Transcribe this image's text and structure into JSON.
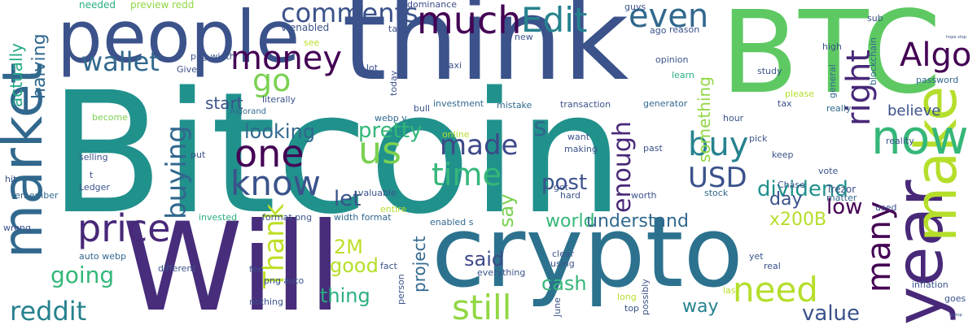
{
  "words": [
    {
      "text": "Bitcoin",
      "color": "#21918c"
    },
    {
      "text": "Will",
      "color": "#472d7b"
    },
    {
      "text": "crypto",
      "color": "#2c728e"
    },
    {
      "text": "think",
      "color": "#3b528b"
    },
    {
      "text": "BTC",
      "color": "#5ec962"
    },
    {
      "text": "people",
      "color": "#3b528b"
    },
    {
      "text": "year",
      "color": "#482878"
    },
    {
      "text": "market",
      "color": "#31688e"
    },
    {
      "text": "make",
      "color": "#b5de2b"
    },
    {
      "text": "now",
      "color": "#35b779"
    },
    {
      "text": "price",
      "color": "#482878"
    },
    {
      "text": "one",
      "color": "#440154"
    },
    {
      "text": "us",
      "color": "#7ad151"
    },
    {
      "text": "know",
      "color": "#3b528b"
    },
    {
      "text": "much",
      "color": "#440154"
    },
    {
      "text": "Edit",
      "color": "#26828e"
    },
    {
      "text": "even",
      "color": "#31688e"
    },
    {
      "text": "money",
      "color": "#440154"
    },
    {
      "text": "Algo",
      "color": "#440154"
    },
    {
      "text": "buy",
      "color": "#26828e"
    },
    {
      "text": "right",
      "color": "#482878"
    },
    {
      "text": "still",
      "color": "#90d743"
    },
    {
      "text": "need",
      "color": "#b5de2b"
    },
    {
      "text": "time",
      "color": "#35b779"
    },
    {
      "text": "USD",
      "color": "#3b528b"
    },
    {
      "text": "made",
      "color": "#3e4989"
    },
    {
      "text": "many",
      "color": "#440154"
    },
    {
      "text": "go",
      "color": "#7ad151"
    },
    {
      "text": "wallet",
      "color": "#31688e"
    },
    {
      "text": "comments",
      "color": "#3b528b"
    },
    {
      "text": "reddit",
      "color": "#26828e"
    },
    {
      "text": "buying",
      "color": "#31688e"
    },
    {
      "text": "Thank",
      "color": "#bddf26"
    },
    {
      "text": "going",
      "color": "#35b779"
    },
    {
      "text": "value",
      "color": "#3b528b"
    },
    {
      "text": "enough",
      "color": "#482878"
    },
    {
      "text": "dividend",
      "color": "#21918c"
    },
    {
      "text": "post",
      "color": "#3b528b"
    },
    {
      "text": "say",
      "color": "#7ad151"
    },
    {
      "text": "world",
      "color": "#35b779"
    },
    {
      "text": "understand",
      "color": "#31688e"
    },
    {
      "text": "let",
      "color": "#3b528b"
    },
    {
      "text": "pretty",
      "color": "#35b779"
    },
    {
      "text": "looking",
      "color": "#31688e"
    },
    {
      "text": "start",
      "color": "#3b528b"
    },
    {
      "text": "something",
      "color": "#90d743"
    },
    {
      "text": "halving",
      "color": "#31688e"
    },
    {
      "text": "actually",
      "color": "#22a884"
    },
    {
      "text": "s",
      "color": "#31688e"
    },
    {
      "text": "x200B",
      "color": "#b5de2b"
    },
    {
      "text": "2M",
      "color": "#bddf26"
    },
    {
      "text": "day",
      "color": "#3b528b"
    },
    {
      "text": "low",
      "color": "#440154"
    },
    {
      "text": "said",
      "color": "#3e4989"
    },
    {
      "text": "good",
      "color": "#b5de2b"
    },
    {
      "text": "cash",
      "color": "#35b779"
    },
    {
      "text": "thing",
      "color": "#2ab07f"
    },
    {
      "text": "way",
      "color": "#26828e"
    },
    {
      "text": "project",
      "color": "#31688e"
    },
    {
      "text": "believe",
      "color": "#3b528b"
    },
    {
      "text": "Trezor",
      "color": "#3b528b"
    },
    {
      "text": "needed",
      "color": "#2ab07f"
    },
    {
      "text": "preview redd",
      "color": "#90d743"
    },
    {
      "text": "dominance",
      "color": "#3e4989"
    },
    {
      "text": "guys",
      "color": "#3b528b"
    },
    {
      "text": "v enabled",
      "color": "#3b528b"
    },
    {
      "text": "take",
      "color": "#3b528b"
    },
    {
      "text": "see",
      "color": "#b5de2b"
    },
    {
      "text": "png width",
      "color": "#3b528b"
    },
    {
      "text": "Given",
      "color": "#3b528b"
    },
    {
      "text": "literally",
      "color": "#3b528b"
    },
    {
      "text": "Algorand",
      "color": "#31688e"
    },
    {
      "text": "become",
      "color": "#7ad151"
    },
    {
      "text": "selling",
      "color": "#3b528b"
    },
    {
      "text": "put",
      "color": "#3b528b"
    },
    {
      "text": "Ledger",
      "color": "#3b528b"
    },
    {
      "text": "t",
      "color": "#3b528b"
    },
    {
      "text": "remember",
      "color": "#31688e"
    },
    {
      "text": "hit",
      "color": "#3b528b"
    },
    {
      "text": "wrong",
      "color": "#3b528b"
    },
    {
      "text": "invested",
      "color": "#2ab07f"
    },
    {
      "text": "different",
      "color": "#3b528b"
    },
    {
      "text": "auto webp",
      "color": "#31688e"
    },
    {
      "text": "fee",
      "color": "#3b528b"
    },
    {
      "text": "nothing",
      "color": "#3b528b"
    },
    {
      "text": "png auto",
      "color": "#3b528b"
    },
    {
      "text": "fact",
      "color": "#3b528b"
    },
    {
      "text": "format png",
      "color": "#3b528b"
    },
    {
      "text": "width format",
      "color": "#31688e"
    },
    {
      "text": "valuable",
      "color": "#3b528b"
    },
    {
      "text": "entire",
      "color": "#b5de2b"
    },
    {
      "text": "enabled s",
      "color": "#31688e"
    },
    {
      "text": "webp v",
      "color": "#31688e"
    },
    {
      "text": "new",
      "color": "#3b528b"
    },
    {
      "text": "lot",
      "color": "#3b528b"
    },
    {
      "text": "maxi",
      "color": "#3b528b"
    },
    {
      "text": "bull",
      "color": "#3b528b"
    },
    {
      "text": "investment",
      "color": "#31688e"
    },
    {
      "text": "mistake",
      "color": "#31688e"
    },
    {
      "text": "transaction",
      "color": "#3b528b"
    },
    {
      "text": "reason",
      "color": "#3b528b"
    },
    {
      "text": "opinion",
      "color": "#3b528b"
    },
    {
      "text": "learn",
      "color": "#2ab07f"
    },
    {
      "text": "ago",
      "color": "#3b528b"
    },
    {
      "text": "sub",
      "color": "#3b528b"
    },
    {
      "text": "high",
      "color": "#3b528b"
    },
    {
      "text": "general",
      "color": "#31688e"
    },
    {
      "text": "blockchain",
      "color": "#31688e"
    },
    {
      "text": "password",
      "color": "#31688e"
    },
    {
      "text": "please",
      "color": "#b5de2b"
    },
    {
      "text": "tax",
      "color": "#3b528b"
    },
    {
      "text": "really",
      "color": "#31688e"
    },
    {
      "text": "study",
      "color": "#3b528b"
    },
    {
      "text": "generator",
      "color": "#31688e"
    },
    {
      "text": "hour",
      "color": "#3b528b"
    },
    {
      "text": "pick",
      "color": "#3b528b"
    },
    {
      "text": "keep",
      "color": "#3b528b"
    },
    {
      "text": "reality",
      "color": "#3b528b"
    },
    {
      "text": "vote",
      "color": "#3b528b"
    },
    {
      "text": "Chase",
      "color": "#3b528b"
    },
    {
      "text": "matter",
      "color": "#31688e"
    },
    {
      "text": "used",
      "color": "#3b528b"
    },
    {
      "text": "stock",
      "color": "#31688e"
    },
    {
      "text": "worth",
      "color": "#3b528b"
    },
    {
      "text": "past",
      "color": "#3b528b"
    },
    {
      "text": "hard",
      "color": "#3b528b"
    },
    {
      "text": "got",
      "color": "#3b528b"
    },
    {
      "text": "want",
      "color": "#3b528b"
    },
    {
      "text": "making",
      "color": "#3b528b"
    },
    {
      "text": "online",
      "color": "#b5de2b"
    },
    {
      "text": "today",
      "color": "#3b528b"
    },
    {
      "text": "clear",
      "color": "#3b528b"
    },
    {
      "text": "using",
      "color": "#3b528b"
    },
    {
      "text": "everything",
      "color": "#3b528b"
    },
    {
      "text": "person",
      "color": "#3b528b"
    },
    {
      "text": "June",
      "color": "#3b528b"
    },
    {
      "text": "long",
      "color": "#b5de2b"
    },
    {
      "text": "top",
      "color": "#3b528b"
    },
    {
      "text": "possibly",
      "color": "#3b528b"
    },
    {
      "text": "real",
      "color": "#3b528b"
    },
    {
      "text": "yet",
      "color": "#3b528b"
    },
    {
      "text": "last",
      "color": "#b5de2b"
    },
    {
      "text": "inflation",
      "color": "#3b528b"
    },
    {
      "text": "goes",
      "color": "#3b528b"
    },
    {
      "text": "hope stop",
      "color": "#3b528b"
    },
    {
      "text": "laptop",
      "color": "#3b528b"
    }
  ]
}
